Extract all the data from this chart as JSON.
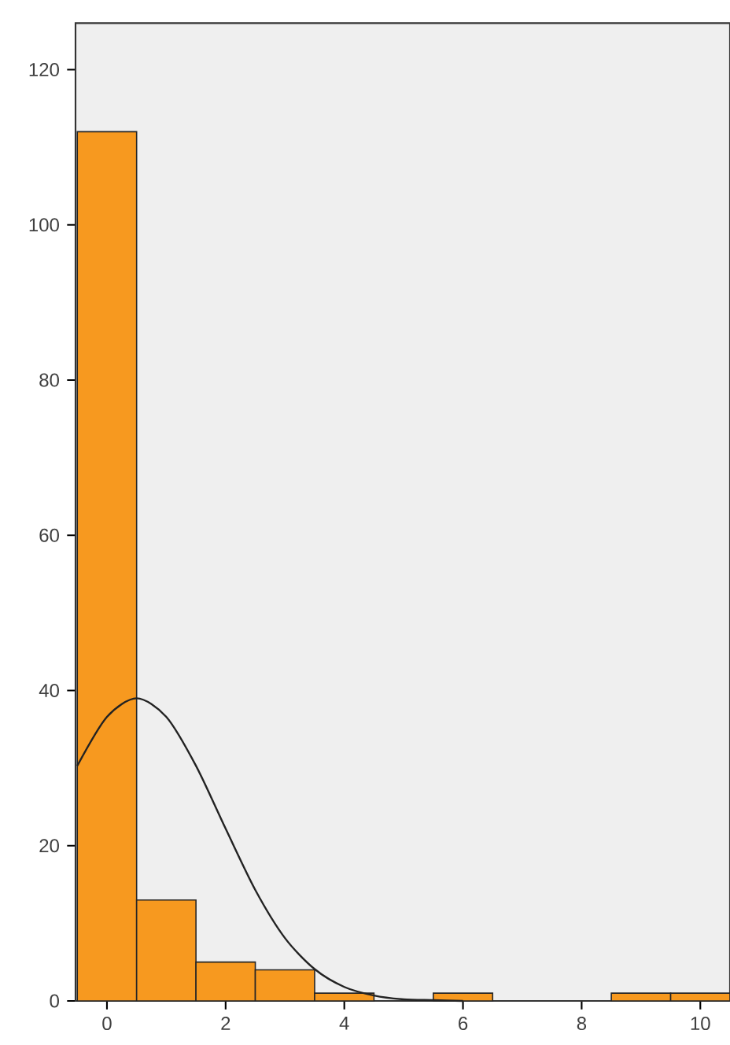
{
  "chart_data": {
    "type": "histogram",
    "bins": [
      -0.5,
      0.5,
      1.5,
      2.5,
      3.5,
      4.5,
      5.5,
      6.5,
      7.5,
      8.5,
      9.5,
      10.5
    ],
    "values": [
      112,
      13,
      5,
      4,
      1,
      0,
      1,
      0,
      0,
      1,
      1
    ],
    "color": "#f7991f",
    "series": [
      {
        "type": "line",
        "color": "#222222",
        "x": [
          -0.5,
          0,
          0.5,
          1,
          1.5,
          2,
          2.5,
          3,
          3.5,
          4,
          4.5,
          5,
          5.5,
          6
        ],
        "values": [
          30.3,
          36.6,
          39,
          36.6,
          30.3,
          22.2,
          14.3,
          8.1,
          4.1,
          1.8,
          0.7,
          0.2,
          0.1,
          0
        ]
      }
    ],
    "xlim": [
      -0.53,
      10.5
    ],
    "ylim": [
      0,
      126
    ],
    "xticks": [
      0,
      2,
      4,
      6,
      8,
      10
    ],
    "yticks": [
      0,
      20,
      40,
      60,
      80,
      100,
      120
    ]
  }
}
